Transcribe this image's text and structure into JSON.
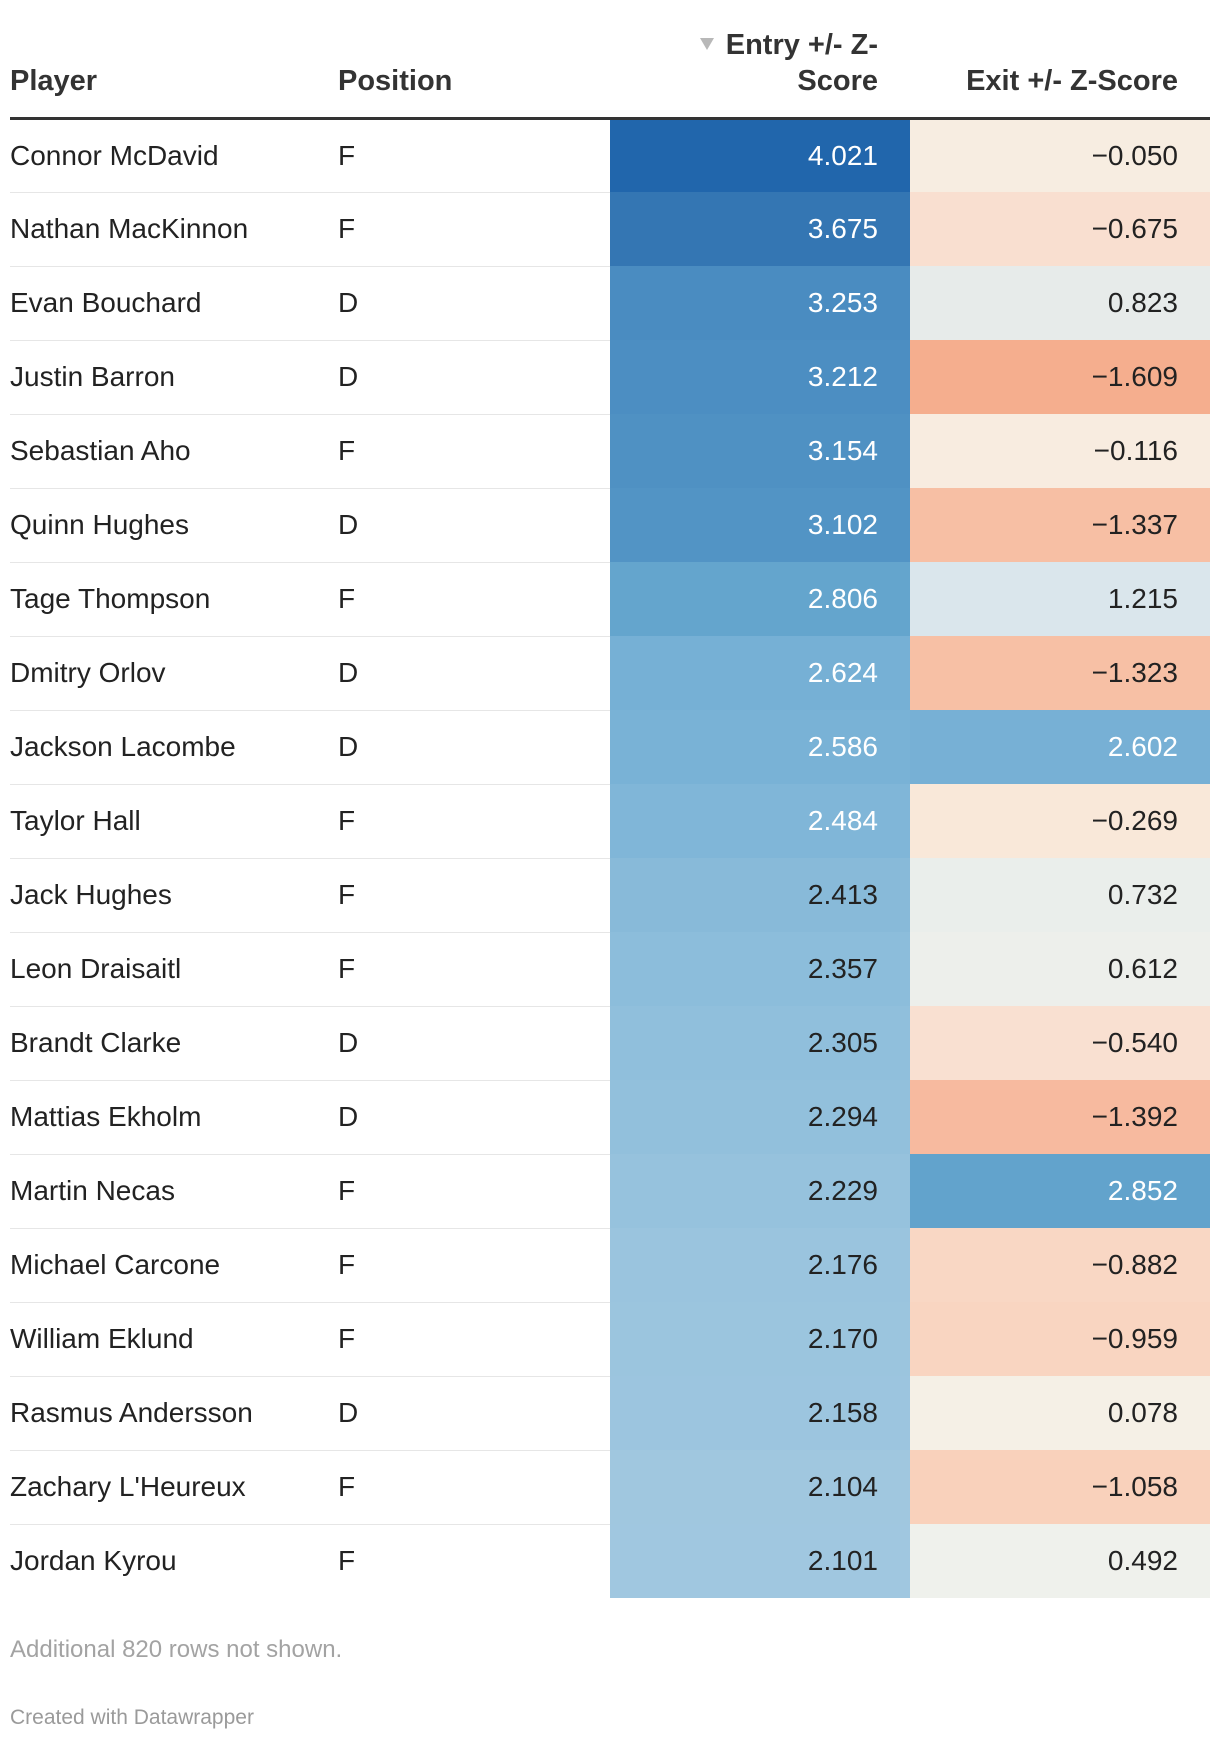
{
  "chart_data": {
    "type": "table",
    "columns": {
      "player": "Player",
      "position": "Position",
      "entry_line1": "Entry +/- Z-",
      "entry_line2": "Score",
      "exit": "Exit +/- Z-Score"
    },
    "sort": {
      "column": "Entry +/- Z-Score",
      "direction": "descending"
    },
    "rows": [
      {
        "player": "Connor McDavid",
        "position": "F",
        "entry": "4.021",
        "exit": "−0.050",
        "entry_color": "#2166ac",
        "exit_color": "#f7ede1"
      },
      {
        "player": "Nathan MacKinnon",
        "position": "F",
        "entry": "3.675",
        "exit": "−0.675",
        "entry_color": "#3476b3",
        "exit_color": "#f9dfd0"
      },
      {
        "player": "Evan Bouchard",
        "position": "D",
        "entry": "3.253",
        "exit": "0.823",
        "entry_color": "#4a8cc1",
        "exit_color": "#e7ebea"
      },
      {
        "player": "Justin Barron",
        "position": "D",
        "entry": "3.212",
        "exit": "−1.609",
        "entry_color": "#4c8ec2",
        "exit_color": "#f5ae8e"
      },
      {
        "player": "Sebastian Aho",
        "position": "F",
        "entry": "3.154",
        "exit": "−0.116",
        "entry_color": "#4f91c3",
        "exit_color": "#f8ece0"
      },
      {
        "player": "Quinn Hughes",
        "position": "D",
        "entry": "3.102",
        "exit": "−1.337",
        "entry_color": "#5294c5",
        "exit_color": "#f7bfa4"
      },
      {
        "player": "Tage Thompson",
        "position": "F",
        "entry": "2.806",
        "exit": "1.215",
        "entry_color": "#64a5cd",
        "exit_color": "#dae6ec"
      },
      {
        "player": "Dmitry Orlov",
        "position": "D",
        "entry": "2.624",
        "exit": "−1.323",
        "entry_color": "#76b0d5",
        "exit_color": "#f7c0a5"
      },
      {
        "player": "Jackson Lacombe",
        "position": "D",
        "entry": "2.586",
        "exit": "2.602",
        "entry_color": "#79b2d6",
        "exit_color": "#77b0d5"
      },
      {
        "player": "Taylor Hall",
        "position": "F",
        "entry": "2.484",
        "exit": "−0.269",
        "entry_color": "#80b6d8",
        "exit_color": "#f9e8d9"
      },
      {
        "player": "Jack Hughes",
        "position": "F",
        "entry": "2.413",
        "exit": "0.732",
        "entry_color": "#88bad9",
        "exit_color": "#eaeeeb"
      },
      {
        "player": "Leon Draisaitl",
        "position": "F",
        "entry": "2.357",
        "exit": "0.612",
        "entry_color": "#8cbddb",
        "exit_color": "#edefeb"
      },
      {
        "player": "Brandt Clarke",
        "position": "D",
        "entry": "2.305",
        "exit": "−0.540",
        "entry_color": "#90bfdc",
        "exit_color": "#f9e0d1"
      },
      {
        "player": "Mattias Ekholm",
        "position": "D",
        "entry": "2.294",
        "exit": "−1.392",
        "entry_color": "#92c0dc",
        "exit_color": "#f7ba9f"
      },
      {
        "player": "Martin Necas",
        "position": "F",
        "entry": "2.229",
        "exit": "2.852",
        "entry_color": "#96c2dd",
        "exit_color": "#62a3cc"
      },
      {
        "player": "Michael Carcone",
        "position": "F",
        "entry": "2.176",
        "exit": "−0.882",
        "entry_color": "#9ac4de",
        "exit_color": "#f9d7c4"
      },
      {
        "player": "William Eklund",
        "position": "F",
        "entry": "2.170",
        "exit": "−0.959",
        "entry_color": "#9bc5de",
        "exit_color": "#f9d5c1"
      },
      {
        "player": "Rasmus Andersson",
        "position": "D",
        "entry": "2.158",
        "exit": "0.078",
        "entry_color": "#9cc5df",
        "exit_color": "#f5f0e6"
      },
      {
        "player": "Zachary L'Heureux",
        "position": "F",
        "entry": "2.104",
        "exit": "−1.058",
        "entry_color": "#a0c7df",
        "exit_color": "#f9d1bb"
      },
      {
        "player": "Jordan Kyrou",
        "position": "F",
        "entry": "2.101",
        "exit": "0.492",
        "entry_color": "#a0c7e0",
        "exit_color": "#eff1ec"
      }
    ]
  },
  "footer": {
    "note": "Additional 820 rows not shown.",
    "credit": "Created with Datawrapper"
  },
  "colors": {
    "text_on_dark": "#ffffff",
    "text_on_light": "#222222"
  }
}
